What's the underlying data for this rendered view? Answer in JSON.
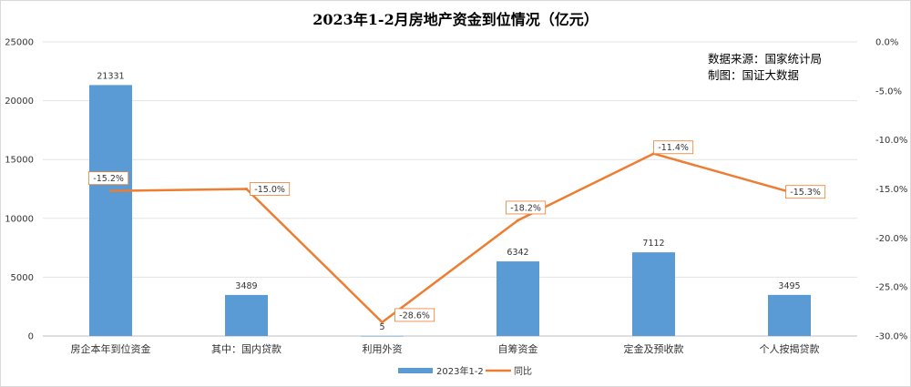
{
  "chart_data": {
    "type": "bar+line",
    "title": "2023年1-2月房地产资金到位情况（亿元）",
    "categories": [
      "房企本年到位资金",
      "其中：国内贷款",
      "利用外资",
      "自筹资金",
      "定金及预收款",
      "个人按揭贷款"
    ],
    "series": [
      {
        "name": "2023年1-2",
        "type": "bar",
        "axis": "left",
        "values": [
          21331,
          3489,
          5,
          6342,
          7112,
          3495
        ],
        "color": "#5b9bd5"
      },
      {
        "name": "同比",
        "type": "line",
        "axis": "right",
        "values": [
          -15.2,
          -15.0,
          -28.6,
          -18.2,
          -11.4,
          -15.3
        ],
        "color": "#ed7d31"
      }
    ],
    "bar_labels": [
      "21331",
      "3489",
      "5",
      "6342",
      "7112",
      "3495"
    ],
    "line_labels": [
      "-15.2%",
      "-15.0%",
      "-28.6%",
      "-18.2%",
      "-11.4%",
      "-15.3%"
    ],
    "y_left": {
      "min": 0,
      "max": 25000,
      "ticks": [
        "0",
        "5000",
        "10000",
        "15000",
        "20000",
        "25000"
      ]
    },
    "y_right": {
      "min": -30,
      "max": 0,
      "ticks": [
        "-30.0%",
        "-25.0%",
        "-20.0%",
        "-15.0%",
        "-10.0%",
        "-5.0%",
        "0.0%"
      ]
    },
    "grid": true,
    "legend_position": "bottom",
    "annotations": [
      "数据来源：国家统计局",
      "制图：国证大数据"
    ]
  }
}
